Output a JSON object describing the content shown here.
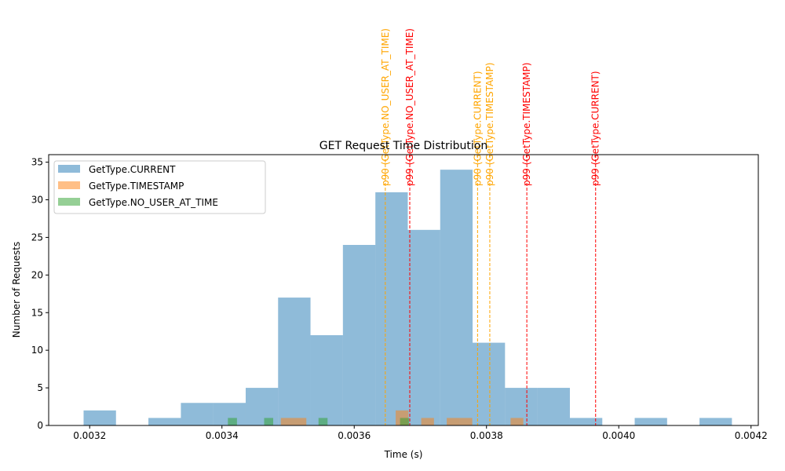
{
  "chart_data": {
    "type": "bar",
    "title": "GET Request Time Distribution",
    "xlabel": "Time (s)",
    "ylabel": "Number of Requests",
    "xlim": [
      0.003138,
      0.004211
    ],
    "ylim": [
      0,
      36
    ],
    "x_ticks": [
      0.0032,
      0.0034,
      0.0036,
      0.0038,
      0.004,
      0.0042
    ],
    "x_tick_labels": [
      "0.0032",
      "0.0034",
      "0.0036",
      "0.0038",
      "0.0040",
      "0.0042"
    ],
    "y_ticks": [
      0,
      5,
      10,
      15,
      20,
      25,
      30,
      35
    ],
    "y_tick_labels": [
      "0",
      "5",
      "10",
      "15",
      "20",
      "25",
      "30",
      "35"
    ],
    "grid": false,
    "legend_position": "top-left",
    "series": [
      {
        "name": "GetType.CURRENT",
        "color": "#1f77b4",
        "opacity": 0.5,
        "bin_edges": [
          0.0031908,
          0.0032398,
          0.0032888,
          0.0033379,
          0.0033869,
          0.0034359,
          0.0034849,
          0.0035339,
          0.0035829,
          0.003632,
          0.003681,
          0.00373,
          0.003779,
          0.003828,
          0.0038771,
          0.0039261,
          0.0039751,
          0.0040241,
          0.0040731,
          0.0041221,
          0.0041711
        ],
        "counts": [
          2,
          0,
          1,
          3,
          3,
          5,
          17,
          12,
          24,
          31,
          26,
          34,
          11,
          5,
          5,
          1,
          0,
          1,
          0,
          1
        ]
      },
      {
        "name": "GetType.TIMESTAMP",
        "color": "#ff7f0e",
        "opacity": 0.5,
        "bin_edges": [
          0.003489,
          0.0035083,
          0.0035276,
          0.0035469,
          0.0035662,
          0.0035855,
          0.0036048,
          0.0036241,
          0.0036434,
          0.0036627,
          0.003682,
          0.0037013,
          0.0037206,
          0.0037399,
          0.0037592,
          0.0037785,
          0.0037978,
          0.0038171,
          0.0038364,
          0.0038557,
          0.003875
        ],
        "counts": [
          1,
          1,
          0,
          0,
          0,
          0,
          0,
          0,
          0,
          2,
          0,
          1,
          0,
          1,
          1,
          0,
          0,
          0,
          1,
          0
        ]
      },
      {
        "name": "GetType.NO_USER_AT_TIME",
        "color": "#2ca02c",
        "opacity": 0.5,
        "bin_edges": [
          0.003409,
          0.0034227,
          0.0034364,
          0.0034501,
          0.0034638,
          0.0034775,
          0.0034912,
          0.0035049,
          0.0035186,
          0.0035323,
          0.003546,
          0.0035597,
          0.0035734,
          0.0035871,
          0.0036008,
          0.0036145,
          0.0036282,
          0.0036419,
          0.0036556,
          0.0036693,
          0.003683
        ],
        "counts": [
          1,
          0,
          0,
          0,
          1,
          0,
          0,
          0,
          0,
          0,
          1,
          0,
          0,
          0,
          0,
          0,
          0,
          0,
          0,
          1
        ]
      }
    ],
    "percentile_lines": [
      {
        "label": "p90 (GetType.CURRENT)",
        "x": 0.0037865,
        "color": "orange"
      },
      {
        "label": "p99 (GetType.CURRENT)",
        "x": 0.003965,
        "color": "red"
      },
      {
        "label": "p90 (GetType.TIMESTAMP)",
        "x": 0.003805,
        "color": "orange"
      },
      {
        "label": "p99 (GetType.TIMESTAMP)",
        "x": 0.003861,
        "color": "red"
      },
      {
        "label": "p90 (GetType.NO_USER_AT_TIME)",
        "x": 0.003647,
        "color": "orange"
      },
      {
        "label": "p99 (GetType.NO_USER_AT_TIME)",
        "x": 0.003684,
        "color": "red"
      }
    ]
  }
}
